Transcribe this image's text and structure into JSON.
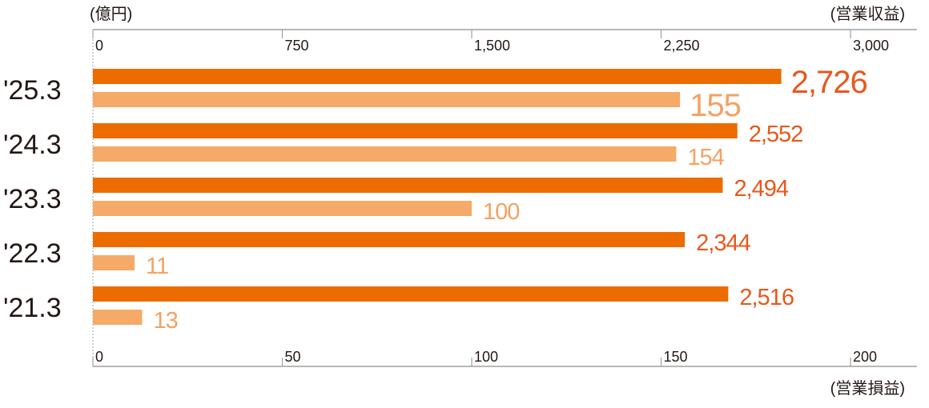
{
  "chart_data": {
    "type": "bar",
    "orientation": "horizontal",
    "unit_label": "(億円)",
    "categories": [
      "'25.3",
      "'24.3",
      "'23.3",
      "'22.3",
      "'21.3"
    ],
    "series": [
      {
        "name": "(営業収益)",
        "axis": "top",
        "color": "#ec6c00",
        "label_color": "#e8581c",
        "values": [
          2726,
          2552,
          2494,
          2344,
          2516
        ],
        "labels": [
          "2,726",
          "2,552",
          "2,494",
          "2,344",
          "2,516"
        ]
      },
      {
        "name": "(営業損益)",
        "axis": "bottom",
        "color": "#f5aa68",
        "label_color": "#f3a262",
        "values": [
          155,
          154,
          100,
          11,
          13
        ],
        "labels": [
          "155",
          "154",
          "100",
          "11",
          "13"
        ]
      }
    ],
    "top_axis": {
      "range": [
        0,
        3000
      ],
      "ticks": [
        "0",
        "750",
        "1,500",
        "2,250",
        "3,000"
      ],
      "tick_values": [
        0,
        750,
        1500,
        2250,
        3000
      ]
    },
    "bottom_axis": {
      "range": [
        0,
        200
      ],
      "ticks": [
        "0",
        "50",
        "100",
        "150",
        "200"
      ],
      "tick_values": [
        0,
        50,
        100,
        150,
        200
      ]
    },
    "highlight_latest": true,
    "grid": false
  }
}
